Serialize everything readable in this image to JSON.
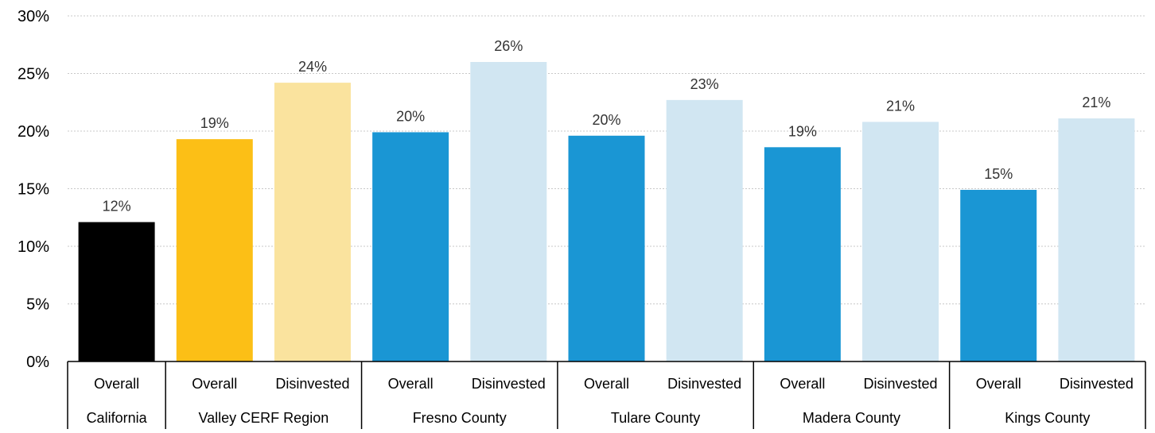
{
  "chart_data": {
    "type": "bar",
    "title": "",
    "xlabel": "",
    "ylabel": "",
    "ylim": [
      0,
      30
    ],
    "yticks": [
      "0%",
      "5%",
      "10%",
      "15%",
      "20%",
      "25%",
      "30%"
    ],
    "grid": true,
    "legend": "none",
    "bars": [
      {
        "group": "California",
        "label": "Overall",
        "value": 12.1,
        "data_label": "12%",
        "color": "#000000"
      },
      {
        "group": "Valley CERF Region",
        "label": "Overall",
        "value": 19.3,
        "data_label": "19%",
        "color": "#FCBF16"
      },
      {
        "group": "Valley CERF Region",
        "label": "Disinvested",
        "value": 24.2,
        "data_label": "24%",
        "color": "#FAE39E"
      },
      {
        "group": "Fresno County",
        "label": "Overall",
        "value": 19.9,
        "data_label": "20%",
        "color": "#1A96D4"
      },
      {
        "group": "Fresno County",
        "label": "Disinvested",
        "value": 26.0,
        "data_label": "26%",
        "color": "#D1E6F2"
      },
      {
        "group": "Tulare County",
        "label": "Overall",
        "value": 19.6,
        "data_label": "20%",
        "color": "#1A96D4"
      },
      {
        "group": "Tulare County",
        "label": "Disinvested",
        "value": 22.7,
        "data_label": "23%",
        "color": "#D1E6F2"
      },
      {
        "group": "Madera County",
        "label": "Overall",
        "value": 18.6,
        "data_label": "19%",
        "color": "#1A96D4"
      },
      {
        "group": "Madera County",
        "label": "Disinvested",
        "value": 20.8,
        "data_label": "21%",
        "color": "#D1E6F2"
      },
      {
        "group": "Kings County",
        "label": "Overall",
        "value": 14.9,
        "data_label": "15%",
        "color": "#1A96D4"
      },
      {
        "group": "Kings County",
        "label": "Disinvested",
        "value": 21.1,
        "data_label": "21%",
        "color": "#D1E6F2"
      }
    ],
    "groups": [
      {
        "name": "California",
        "count": 1
      },
      {
        "name": "Valley CERF Region",
        "count": 2
      },
      {
        "name": "Fresno County",
        "count": 2
      },
      {
        "name": "Tulare County",
        "count": 2
      },
      {
        "name": "Madera County",
        "count": 2
      },
      {
        "name": "Kings County",
        "count": 2
      }
    ]
  }
}
